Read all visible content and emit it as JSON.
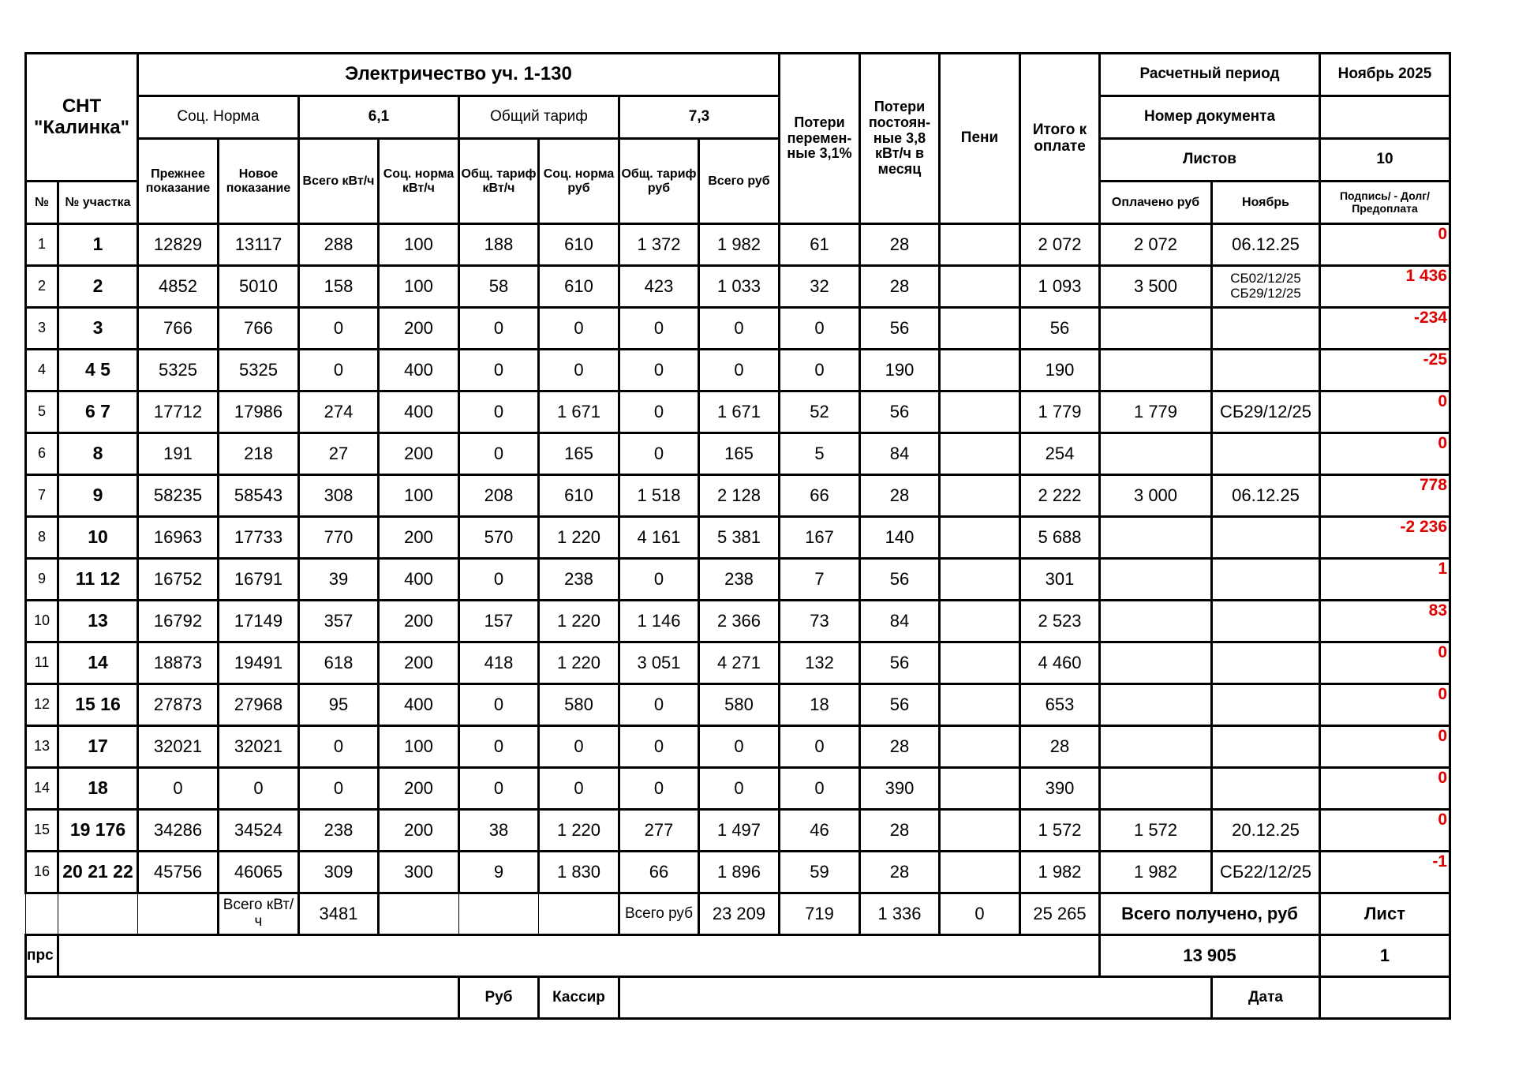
{
  "header": {
    "org": "СНТ \"Калинка\"",
    "title": "Электричество уч. 1-130",
    "soc_norm_label": "Соц. Норма",
    "soc_norm_rate": "6,1",
    "general_tariff_label": "Общий тариф",
    "general_tariff_rate": "7,3",
    "col_no": "№",
    "col_plot": "№ участка",
    "col_prev": "Прежнее показание",
    "col_new": "Новое показание",
    "col_total_kwh": "Всего кВт/ч",
    "col_soc_kwh": "Соц. норма кВт/ч",
    "col_gen_kwh": "Общ. тариф кВт/ч",
    "col_soc_rub": "Соц. норма руб",
    "col_gen_rub": "Общ. тариф руб",
    "col_total_rub": "Всего руб",
    "col_loss_var": "Потери перемен-ные 3,1%",
    "col_loss_const": "Потери постоян-ные 3,8 кВт/ч в месяц",
    "col_penalty": "Пени",
    "col_due": "Итого к оплате",
    "period_label": "Расчетный период",
    "period_value": "Ноябрь 2025",
    "doc_number_label": "Номер документа",
    "doc_number_value": "",
    "sheets_label": "Листов",
    "sheets_value": "10",
    "col_paid": "Оплачено руб",
    "col_month": "Ноябрь",
    "col_balance": "Подпись/ - Долг/Предоплата"
  },
  "rows": [
    [
      "1",
      "1",
      "12829",
      "13117",
      "288",
      "100",
      "188",
      "610",
      "1 372",
      "1 982",
      "61",
      "28",
      "",
      "2 072",
      "2 072",
      "06.12.25",
      "0"
    ],
    [
      "2",
      "2",
      "4852",
      "5010",
      "158",
      "100",
      "58",
      "610",
      "423",
      "1 033",
      "32",
      "28",
      "",
      "1 093",
      "3 500",
      "СБ02/12/25 СБ29/12/25",
      "1 436"
    ],
    [
      "3",
      "3",
      "766",
      "766",
      "0",
      "200",
      "0",
      "0",
      "0",
      "0",
      "0",
      "56",
      "",
      "56",
      "",
      "",
      "-234"
    ],
    [
      "4",
      "4 5",
      "5325",
      "5325",
      "0",
      "400",
      "0",
      "0",
      "0",
      "0",
      "0",
      "190",
      "",
      "190",
      "",
      "",
      "-25"
    ],
    [
      "5",
      "6 7",
      "17712",
      "17986",
      "274",
      "400",
      "0",
      "1 671",
      "0",
      "1 671",
      "52",
      "56",
      "",
      "1 779",
      "1 779",
      "СБ29/12/25",
      "0"
    ],
    [
      "6",
      "8",
      "191",
      "218",
      "27",
      "200",
      "0",
      "165",
      "0",
      "165",
      "5",
      "84",
      "",
      "254",
      "",
      "",
      "0"
    ],
    [
      "7",
      "9",
      "58235",
      "58543",
      "308",
      "100",
      "208",
      "610",
      "1 518",
      "2 128",
      "66",
      "28",
      "",
      "2 222",
      "3 000",
      "06.12.25",
      "778"
    ],
    [
      "8",
      "10",
      "16963",
      "17733",
      "770",
      "200",
      "570",
      "1 220",
      "4 161",
      "5 381",
      "167",
      "140",
      "",
      "5 688",
      "",
      "",
      "-2 236"
    ],
    [
      "9",
      "11 12",
      "16752",
      "16791",
      "39",
      "400",
      "0",
      "238",
      "0",
      "238",
      "7",
      "56",
      "",
      "301",
      "",
      "",
      "1"
    ],
    [
      "10",
      "13",
      "16792",
      "17149",
      "357",
      "200",
      "157",
      "1 220",
      "1 146",
      "2 366",
      "73",
      "84",
      "",
      "2 523",
      "",
      "",
      "83"
    ],
    [
      "11",
      "14",
      "18873",
      "19491",
      "618",
      "200",
      "418",
      "1 220",
      "3 051",
      "4 271",
      "132",
      "56",
      "",
      "4 460",
      "",
      "",
      "0"
    ],
    [
      "12",
      "15 16",
      "27873",
      "27968",
      "95",
      "400",
      "0",
      "580",
      "0",
      "580",
      "18",
      "56",
      "",
      "653",
      "",
      "",
      "0"
    ],
    [
      "13",
      "17",
      "32021",
      "32021",
      "0",
      "100",
      "0",
      "0",
      "0",
      "0",
      "0",
      "28",
      "",
      "28",
      "",
      "",
      "0"
    ],
    [
      "14",
      "18",
      "0",
      "0",
      "0",
      "200",
      "0",
      "0",
      "0",
      "0",
      "0",
      "390",
      "",
      "390",
      "",
      "",
      "0"
    ],
    [
      "15",
      "19 176",
      "34286",
      "34524",
      "238",
      "200",
      "38",
      "1 220",
      "277",
      "1 497",
      "46",
      "28",
      "",
      "1 572",
      "1 572",
      "20.12.25",
      "0"
    ],
    [
      "16",
      "20 21 22",
      "45756",
      "46065",
      "309",
      "300",
      "9",
      "1 830",
      "66",
      "1 896",
      "59",
      "28",
      "",
      "1 982",
      "1 982",
      "СБ22/12/25",
      "-1"
    ]
  ],
  "totals": {
    "kwh_label": "Всего кВт/ч",
    "kwh": "3481",
    "rub_label": "Всего руб",
    "rub": "23 209",
    "loss_var": "719",
    "loss_const": "1 336",
    "penalty": "0",
    "due": "25 265",
    "received_label": "Всего получено, руб",
    "sheet_label": "Лист"
  },
  "footer": {
    "prs": "прс",
    "received": "13 905",
    "sheet": "1",
    "rub_label": "Руб",
    "cashier_label": "Кассир",
    "date_label": "Дата"
  },
  "colors": {
    "balance": "#e00000"
  }
}
